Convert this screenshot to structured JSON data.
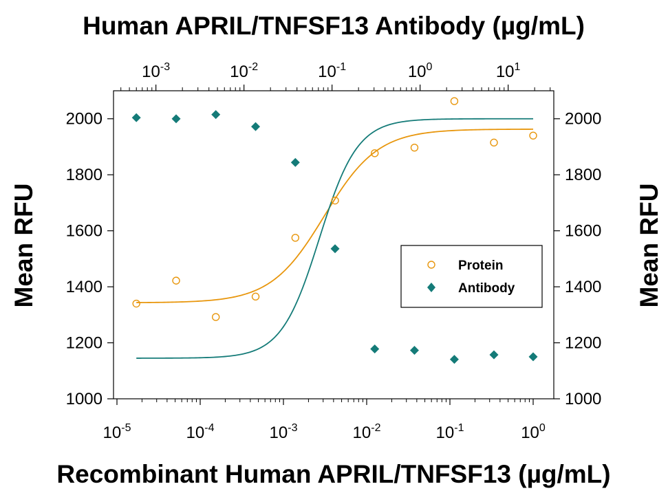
{
  "chart_data": {
    "type": "scatter",
    "title": "Human APRIL/TNFSF13 Antibody (µg/mL)",
    "xlabel": "Recombinant Human APRIL/TNFSF13 (µg/mL)",
    "ylabel_left": "Mean RFU",
    "ylabel_right": "Mean RFU",
    "x_scale": "log",
    "xlim": [
      1e-05,
      1
    ],
    "ylim": [
      1000,
      2100
    ],
    "x2_scale": "log",
    "x2lim": [
      0.00033,
      33
    ],
    "x_ticks": [
      {
        "base": "10",
        "exp": "-5",
        "value": 1e-05
      },
      {
        "base": "10",
        "exp": "-4",
        "value": 0.0001
      },
      {
        "base": "10",
        "exp": "-3",
        "value": 0.001
      },
      {
        "base": "10",
        "exp": "-2",
        "value": 0.01
      },
      {
        "base": "10",
        "exp": "-1",
        "value": 0.1
      },
      {
        "base": "10",
        "exp": "0",
        "value": 1
      }
    ],
    "x2_ticks": [
      {
        "base": "10",
        "exp": "-3",
        "value": 0.001
      },
      {
        "base": "10",
        "exp": "-2",
        "value": 0.01
      },
      {
        "base": "10",
        "exp": "-1",
        "value": 0.1
      },
      {
        "base": "10",
        "exp": "0",
        "value": 1
      },
      {
        "base": "10",
        "exp": "1",
        "value": 10
      }
    ],
    "y_ticks": [
      "1000",
      "1200",
      "1400",
      "1600",
      "1800",
      "2000"
    ],
    "legend_position": "right",
    "series": [
      {
        "name": "Protein",
        "marker": "open-circle",
        "color": "#E8960C",
        "axis": "bottom",
        "x": [
          1.71e-05,
          5.14e-05,
          0.000154,
          0.000463,
          0.00139,
          0.00417,
          0.0125,
          0.0375,
          0.113,
          0.338,
          1.0
        ],
        "y": [
          1340,
          1422,
          1292,
          1365,
          1575,
          1708,
          1877,
          1897,
          2063,
          1915,
          1940
        ],
        "fit": {
          "bottom": 1343,
          "top": 1963,
          "ec50": 0.0031,
          "hill": 1.35
        }
      },
      {
        "name": "Antibody",
        "marker": "filled-diamond",
        "color": "#147B78",
        "axis": "bottom",
        "x": [
          1.71e-05,
          5.14e-05,
          0.000154,
          0.000463,
          0.00139,
          0.00417,
          0.0125,
          0.0375,
          0.113,
          0.338,
          1.0
        ],
        "y": [
          2004,
          2000,
          2015,
          1972,
          1844,
          1536,
          1178,
          1173,
          1141,
          1157,
          1150
        ],
        "fit": {
          "bottom": 1145,
          "top": 2000,
          "ec50": 0.0027,
          "hill": 1.9
        }
      }
    ]
  }
}
